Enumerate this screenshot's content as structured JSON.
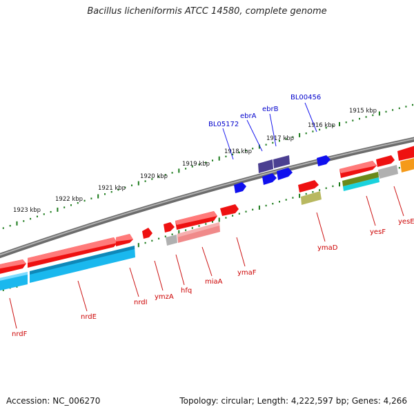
{
  "title": "Bacillus licheniformis ATCC 14580, complete genome",
  "footer": {
    "accession": "Accession: NC_006270",
    "summary": "Topology: circular; Length: 4,222,597 bp; Genes: 4,266"
  },
  "colors": {
    "forward_gene": "#ee1111",
    "reverse_gene": "#1ab8ee",
    "backbone": "#808080",
    "tick": "#1a7a1a",
    "forward_label": "#0000cc",
    "reverse_label": "#cc0000",
    "small_blue": "#1010ee",
    "dark_purple": "#4b3f91",
    "gray_feature": "#b0b0b0",
    "olive": "#b8b860",
    "pink": "#f08a8a",
    "orange": "#f59a1a",
    "dark_green": "#6a8a1a"
  },
  "kbp_labels": [
    "1923 kbp",
    "1922 kbp",
    "1921 kbp",
    "1920 kbp",
    "1919 kbp",
    "1918 kbp",
    "1917 kbp",
    "1916 kbp",
    "1915 kbp"
  ],
  "top_gene_labels": [
    "BL05172",
    "ebrA",
    "ebrB",
    "BL00456"
  ],
  "bottom_gene_labels": [
    "nrdF",
    "nrdE",
    "nrdI",
    "ymzA",
    "hfq",
    "miaA",
    "ymaF",
    "ymaD",
    "yesF",
    "yesE"
  ]
}
